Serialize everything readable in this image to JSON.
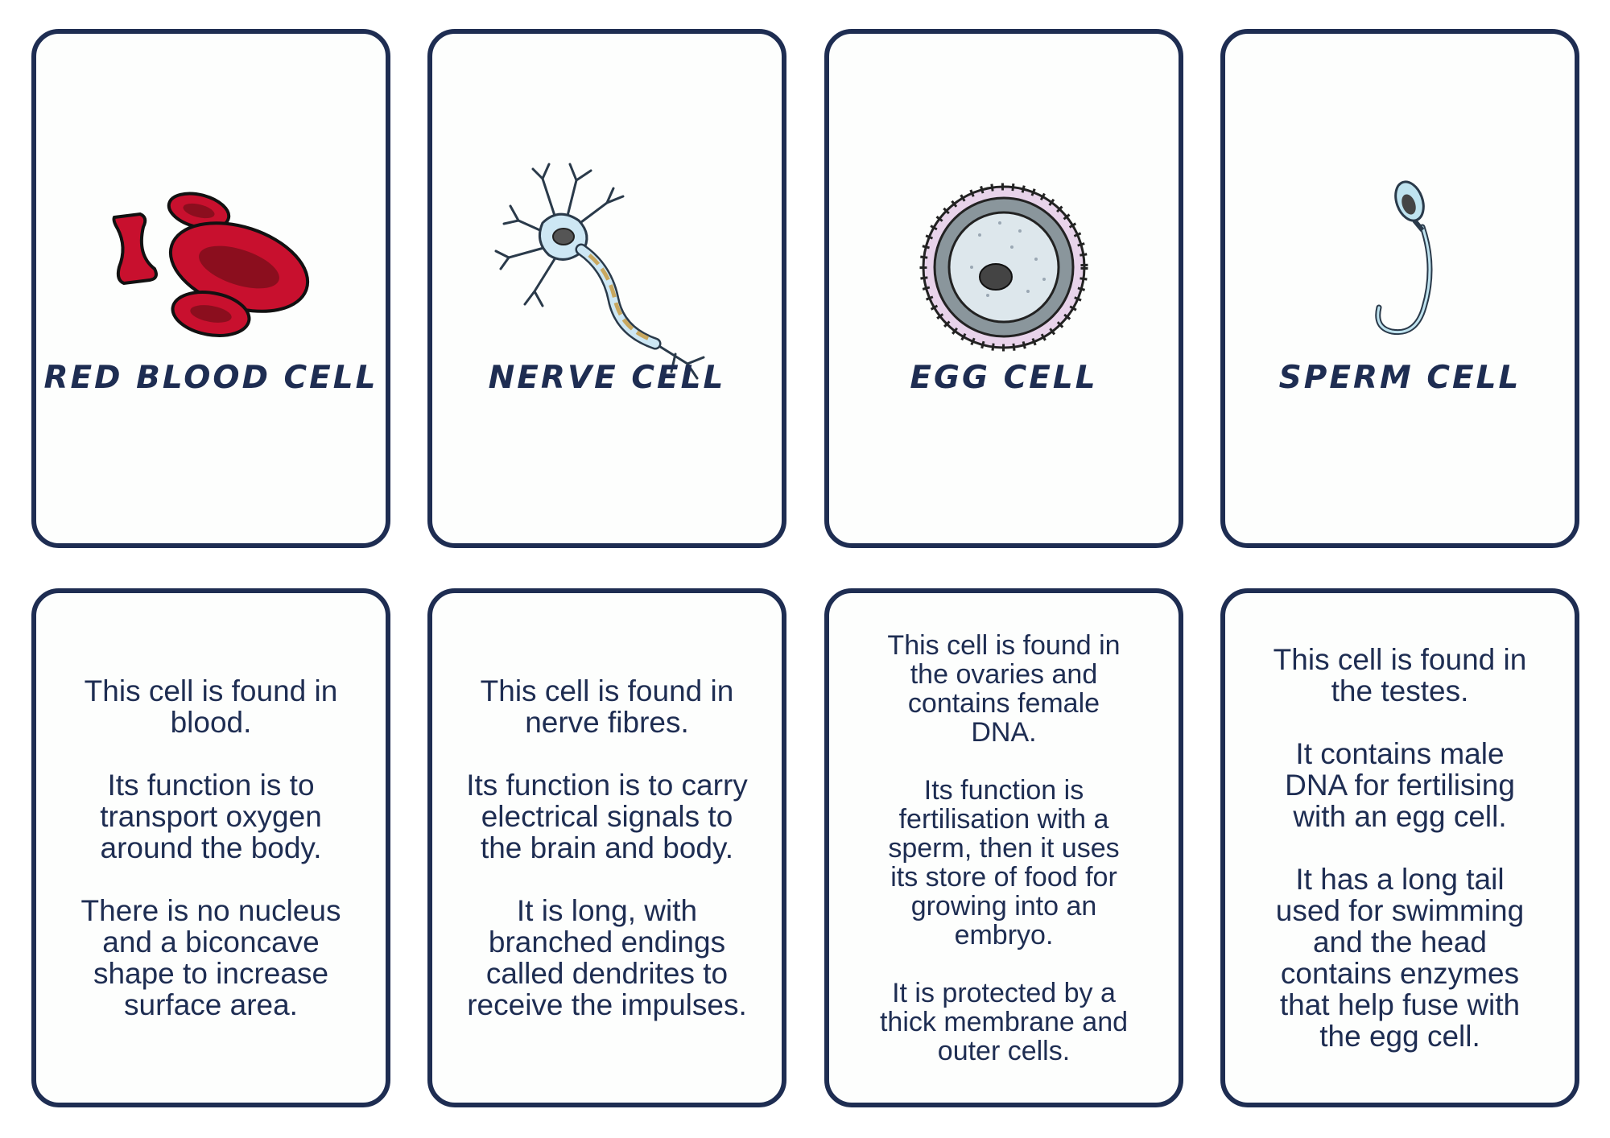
{
  "cards": [
    {
      "title": "RED BLOOD CELL",
      "icon": "red-blood-cell-icon",
      "description": "This cell is found in\nblood.\n\nIts function is to\ntransport oxygen\naround the body.\n\nThere is no nucleus\nand a biconcave\nshape to increase\nsurface area."
    },
    {
      "title": "NERVE CELL",
      "icon": "nerve-cell-icon",
      "description": "This cell is found in\nnerve fibres.\n\nIts function is to carry\nelectrical signals to\nthe brain and body.\n\nIt is long, with\nbranched endings\ncalled dendrites to\nreceive the impulses."
    },
    {
      "title": "EGG CELL",
      "icon": "egg-cell-icon",
      "description": "This cell is found in\nthe ovaries and\ncontains female\nDNA.\n\nIts function is\nfertilisation with a\nsperm, then it uses\nits store of food for\ngrowing into an\nembryo.\n\nIt is protected by a\nthick membrane and\nouter cells."
    },
    {
      "title": "SPERM CELL",
      "icon": "sperm-cell-icon",
      "description": "This cell is found in\nthe testes.\n\nIt contains male\nDNA for fertilising\nwith an egg cell.\n\nIt has a long tail\nused for swimming\nand the head\ncontains enzymes\nthat help fuse with\nthe egg cell."
    }
  ],
  "colors": {
    "border": "#1e2d52",
    "text": "#1e2d52",
    "blood": "#c8102e",
    "nerve": "#cde7f4",
    "egg_membrane": "#8a969c",
    "sperm": "#bfe3ef"
  }
}
